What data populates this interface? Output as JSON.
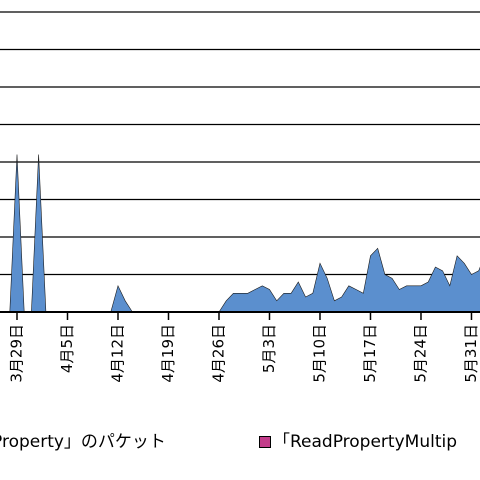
{
  "chart_data": {
    "type": "area",
    "ylim": [
      0,
      8
    ],
    "grid": true,
    "x_tick_labels": [
      "3月29日",
      "4月5日",
      "4月12日",
      "4月19日",
      "4月26日",
      "5月3日",
      "5月10日",
      "5月17日",
      "5月24日",
      "5月31日"
    ],
    "series": [
      {
        "name": "「ReadProperty」のパケット",
        "color": "#5b8fce",
        "x": [
          "3月28日",
          "3月29日",
          "3月30日",
          "3月31日",
          "4月1日",
          "4月2日",
          "4月3日",
          "4月4日",
          "4月5日",
          "4月11日",
          "4月12日",
          "4月13日",
          "4月14日",
          "4月26日",
          "4月27日",
          "4月28日",
          "4月29日",
          "4月30日",
          "5月1日",
          "5月2日",
          "5月3日",
          "5月4日",
          "5月5日",
          "5月6日",
          "5月7日",
          "5月8日",
          "5月9日",
          "5月10日",
          "5月11日",
          "5月12日",
          "5月13日",
          "5月14日",
          "5月15日",
          "5月16日",
          "5月17日",
          "5月18日",
          "5月19日",
          "5月20日",
          "5月21日",
          "5月22日",
          "5月23日",
          "5月24日",
          "5月25日",
          "5月26日",
          "5月27日",
          "5月28日",
          "5月29日",
          "5月30日",
          "5月31日",
          "6月1日",
          "6月2日",
          "6月3日",
          "6月4日"
        ],
        "values": [
          0,
          4.2,
          0,
          0,
          4.2,
          0,
          0,
          0,
          0,
          0,
          0.7,
          0.3,
          0,
          0,
          0.3,
          0.5,
          0.5,
          0.5,
          0.6,
          0.7,
          0.6,
          0.3,
          0.5,
          0.5,
          0.8,
          0.4,
          0.5,
          1.3,
          0.9,
          0.3,
          0.4,
          0.7,
          0.6,
          0.5,
          1.5,
          1.7,
          1.0,
          0.9,
          0.6,
          0.7,
          0.7,
          0.7,
          0.8,
          1.2,
          1.1,
          0.7,
          1.5,
          1.3,
          1.0,
          1.1,
          1.6,
          1.3,
          1.1
        ]
      }
    ]
  },
  "legend": {
    "item1": "Property」のパケット",
    "item2": "「ReadPropertyMultip"
  }
}
